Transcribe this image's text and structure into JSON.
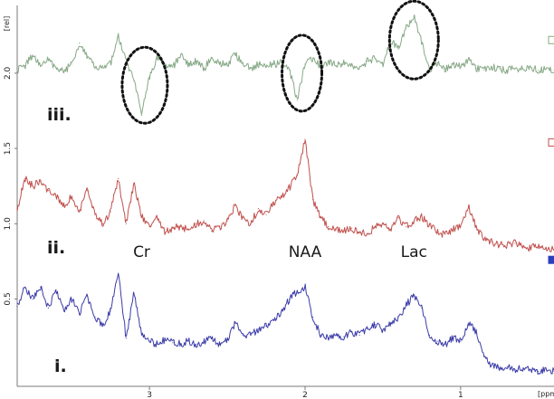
{
  "chart_data": {
    "type": "line",
    "x": [
      3.85,
      3.8,
      3.75,
      3.7,
      3.65,
      3.6,
      3.55,
      3.5,
      3.45,
      3.4,
      3.35,
      3.3,
      3.25,
      3.2,
      3.15,
      3.1,
      3.05,
      3.0,
      2.95,
      2.9,
      2.85,
      2.8,
      2.75,
      2.7,
      2.65,
      2.6,
      2.55,
      2.5,
      2.45,
      2.4,
      2.35,
      2.3,
      2.25,
      2.2,
      2.15,
      2.1,
      2.05,
      2.0,
      1.95,
      1.9,
      1.85,
      1.8,
      1.75,
      1.7,
      1.65,
      1.6,
      1.55,
      1.5,
      1.45,
      1.4,
      1.35,
      1.3,
      1.25,
      1.2,
      1.15,
      1.1,
      1.05,
      1.0,
      0.95,
      0.9,
      0.85,
      0.8,
      0.75,
      0.7,
      0.65,
      0.6,
      0.55,
      0.5,
      0.45,
      0.4
    ],
    "series": [
      {
        "name": "iii.",
        "color": "#86a886",
        "values": [
          2.02,
          2.05,
          2.12,
          2.05,
          2.09,
          2.04,
          2.01,
          2.06,
          2.2,
          2.12,
          2.03,
          2.05,
          2.06,
          2.24,
          2.08,
          1.95,
          1.72,
          1.98,
          2.1,
          2.06,
          2.04,
          2.12,
          2.05,
          2.08,
          2.03,
          2.1,
          2.07,
          2.05,
          2.13,
          2.07,
          2.03,
          2.06,
          2.04,
          2.06,
          2.07,
          2.02,
          1.82,
          2.06,
          2.1,
          2.04,
          2.08,
          2.05,
          2.07,
          2.06,
          2.03,
          2.08,
          2.1,
          2.06,
          2.22,
          2.16,
          2.3,
          2.38,
          2.2,
          2.02,
          2.07,
          2.03,
          2.06,
          2.04,
          2.09,
          2.03,
          2.02,
          2.04,
          2.03,
          2.02,
          2.03,
          2.03,
          2.04,
          2.02,
          2.03,
          2.02
        ]
      },
      {
        "name": "ii.",
        "color": "#c0504d",
        "values": [
          1.1,
          1.3,
          1.25,
          1.28,
          1.22,
          1.18,
          1.12,
          1.18,
          1.08,
          1.22,
          1.06,
          1.0,
          1.08,
          1.3,
          1.0,
          1.27,
          1.05,
          0.98,
          1.04,
          0.94,
          0.97,
          0.98,
          0.96,
          1.0,
          1.02,
          0.95,
          0.98,
          1.02,
          1.12,
          1.04,
          1.0,
          1.1,
          1.06,
          1.14,
          1.18,
          1.24,
          1.32,
          1.56,
          1.16,
          1.04,
          0.98,
          0.96,
          0.95,
          0.97,
          0.94,
          0.93,
          0.98,
          1.0,
          0.96,
          1.04,
          0.98,
          1.02,
          1.05,
          0.99,
          0.94,
          0.93,
          0.96,
          0.98,
          1.12,
          0.98,
          0.9,
          0.88,
          0.86,
          0.86,
          0.87,
          0.85,
          0.84,
          0.85,
          0.84,
          0.83
        ]
      },
      {
        "name": "i.",
        "color": "#3b3ba8",
        "values": [
          0.45,
          0.58,
          0.5,
          0.58,
          0.44,
          0.56,
          0.42,
          0.5,
          0.4,
          0.52,
          0.38,
          0.32,
          0.42,
          0.66,
          0.24,
          0.54,
          0.26,
          0.22,
          0.2,
          0.23,
          0.21,
          0.2,
          0.22,
          0.2,
          0.21,
          0.24,
          0.2,
          0.23,
          0.34,
          0.26,
          0.26,
          0.3,
          0.32,
          0.36,
          0.42,
          0.5,
          0.55,
          0.58,
          0.38,
          0.26,
          0.24,
          0.26,
          0.25,
          0.28,
          0.26,
          0.3,
          0.33,
          0.29,
          0.34,
          0.38,
          0.46,
          0.52,
          0.44,
          0.26,
          0.22,
          0.2,
          0.24,
          0.22,
          0.34,
          0.28,
          0.12,
          0.06,
          0.04,
          0.05,
          0.03,
          0.04,
          0.03,
          0.02,
          0.03,
          0.02
        ]
      }
    ],
    "xlabel": "[ppm]",
    "ylabel": "[rel]",
    "xlim": [
      3.85,
      0.4
    ],
    "ylim": [
      -0.08,
      2.45
    ],
    "x_ticks": [
      3,
      2,
      1
    ],
    "y_ticks": [
      0.5,
      1.0,
      1.5,
      2.0
    ],
    "x_tick_labels": [
      "3",
      "2",
      "1"
    ],
    "y_tick_labels": [
      "0.5",
      "1.0",
      "1.5",
      "2.0"
    ],
    "series_labels": [
      "iii.",
      "ii.",
      "i."
    ],
    "peak_labels": [
      {
        "text": "Cr",
        "x": 3.05,
        "y": 0.78
      },
      {
        "text": "NAA",
        "x": 2.0,
        "y": 0.78
      },
      {
        "text": "Lac",
        "x": 1.3,
        "y": 0.78
      }
    ],
    "highlighted_peaks": [
      {
        "x": 3.03,
        "y": 1.92
      },
      {
        "x": 2.02,
        "y": 2.0
      },
      {
        "x": 1.3,
        "y": 2.22
      }
    ],
    "grid": false,
    "legend_markers": [
      {
        "series": "iii.",
        "shape": "hollow-square",
        "color": "#86a886",
        "y": 2.22
      },
      {
        "series": "ii.",
        "shape": "hollow-square",
        "color": "#c0504d",
        "y": 1.54
      },
      {
        "series": "i.",
        "shape": "filled-square",
        "color": "#2b3fbf",
        "y": 0.76
      }
    ],
    "peak_outline_color": "#111111"
  }
}
